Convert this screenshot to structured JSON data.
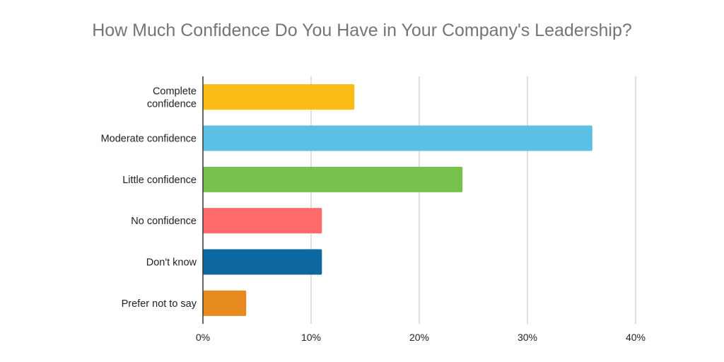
{
  "chart_data": {
    "type": "bar",
    "orientation": "horizontal",
    "title": "How Much Confidence Do You Have in Your Company's Leadership?",
    "categories": [
      "Complete confidence",
      "Moderate confidence",
      "Little confidence",
      "No confidence",
      "Don't know",
      "Prefer not to say"
    ],
    "values": [
      14,
      36,
      24,
      11,
      11,
      4
    ],
    "colors": [
      "#F8BC15",
      "#5BC0E4",
      "#76C24D",
      "#FF6B6B",
      "#0D689F",
      "#E68A20"
    ],
    "xlim": [
      0,
      40
    ],
    "xticks": [
      0,
      10,
      20,
      30,
      40
    ],
    "xtick_labels": [
      "0%",
      "10%",
      "20%",
      "30%",
      "40%"
    ],
    "grid": "vertical",
    "xlabel": "",
    "ylabel": ""
  }
}
